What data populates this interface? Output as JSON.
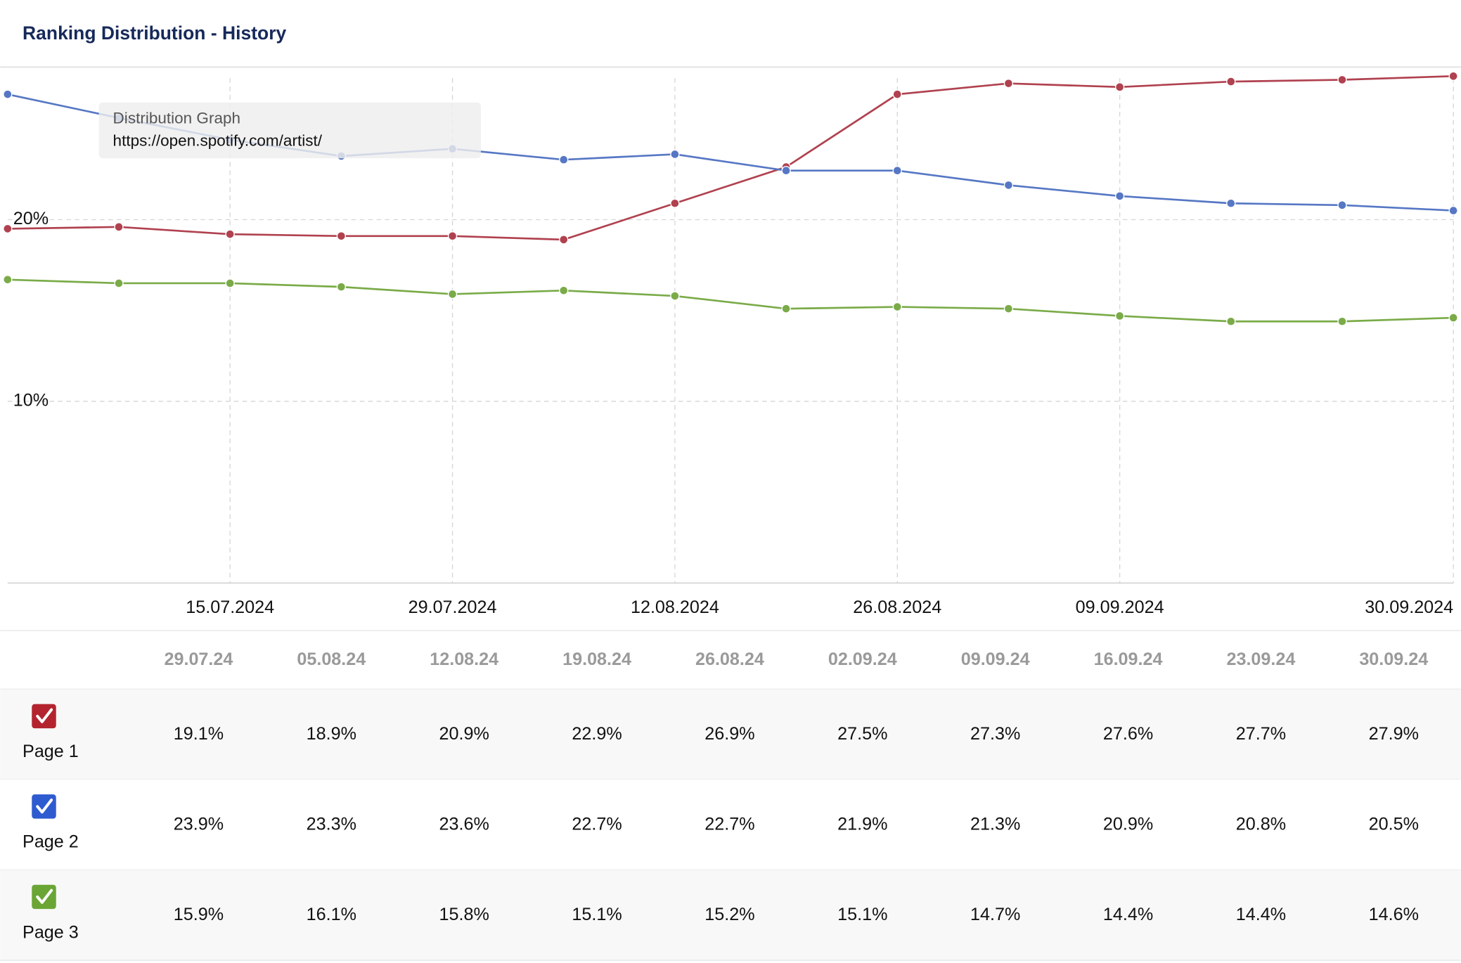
{
  "header": {
    "title": "Ranking Distribution - History"
  },
  "chart_data": {
    "type": "line",
    "categories": [
      null,
      null,
      "15.07.2024",
      null,
      "29.07.2024",
      null,
      "12.08.2024",
      null,
      "26.08.2024",
      null,
      "09.09.2024",
      null,
      null,
      "30.09.2024"
    ],
    "series": [
      {
        "name": "Page 1",
        "color": "#b0414f",
        "values": [
          19.5,
          19.6,
          19.2,
          19.1,
          19.1,
          18.9,
          20.9,
          22.9,
          26.9,
          27.5,
          27.3,
          27.6,
          27.7,
          27.9
        ]
      },
      {
        "name": "Page 2",
        "color": "#5677c4",
        "values": [
          26.9,
          25.6,
          24.4,
          23.5,
          23.9,
          23.3,
          23.6,
          22.7,
          22.7,
          21.9,
          21.3,
          20.9,
          20.8,
          20.5
        ]
      },
      {
        "name": "Page 3",
        "color": "#7aab48",
        "values": [
          16.7,
          16.5,
          16.5,
          16.3,
          15.9,
          16.1,
          15.8,
          15.1,
          15.2,
          15.1,
          14.7,
          14.4,
          14.4,
          14.6
        ]
      }
    ],
    "ylim": [
      0,
      28.4
    ],
    "yticks": [
      {
        "value": 10,
        "label": "10%"
      },
      {
        "value": 20,
        "label": "20%"
      }
    ],
    "grid": true
  },
  "tooltip": {
    "title": "Distribution Graph",
    "url": "https://open.spotify.com/artist/"
  },
  "table": {
    "columns": [
      "29.07.24",
      "05.08.24",
      "12.08.24",
      "19.08.24",
      "26.08.24",
      "02.09.24",
      "09.09.24",
      "16.09.24",
      "23.09.24",
      "30.09.24"
    ],
    "rows": [
      {
        "label": "Page 1",
        "color": "#b3242f",
        "cells": [
          "19.1%",
          "18.9%",
          "20.9%",
          "22.9%",
          "26.9%",
          "27.5%",
          "27.3%",
          "27.6%",
          "27.7%",
          "27.9%"
        ]
      },
      {
        "label": "Page 2",
        "color": "#2f5bd1",
        "cells": [
          "23.9%",
          "23.3%",
          "23.6%",
          "22.7%",
          "22.7%",
          "21.9%",
          "21.3%",
          "20.9%",
          "20.8%",
          "20.5%"
        ]
      },
      {
        "label": "Page 3",
        "color": "#6aa535",
        "cells": [
          "15.9%",
          "16.1%",
          "15.8%",
          "15.1%",
          "15.2%",
          "15.1%",
          "14.7%",
          "14.4%",
          "14.4%",
          "14.6%"
        ]
      }
    ]
  }
}
